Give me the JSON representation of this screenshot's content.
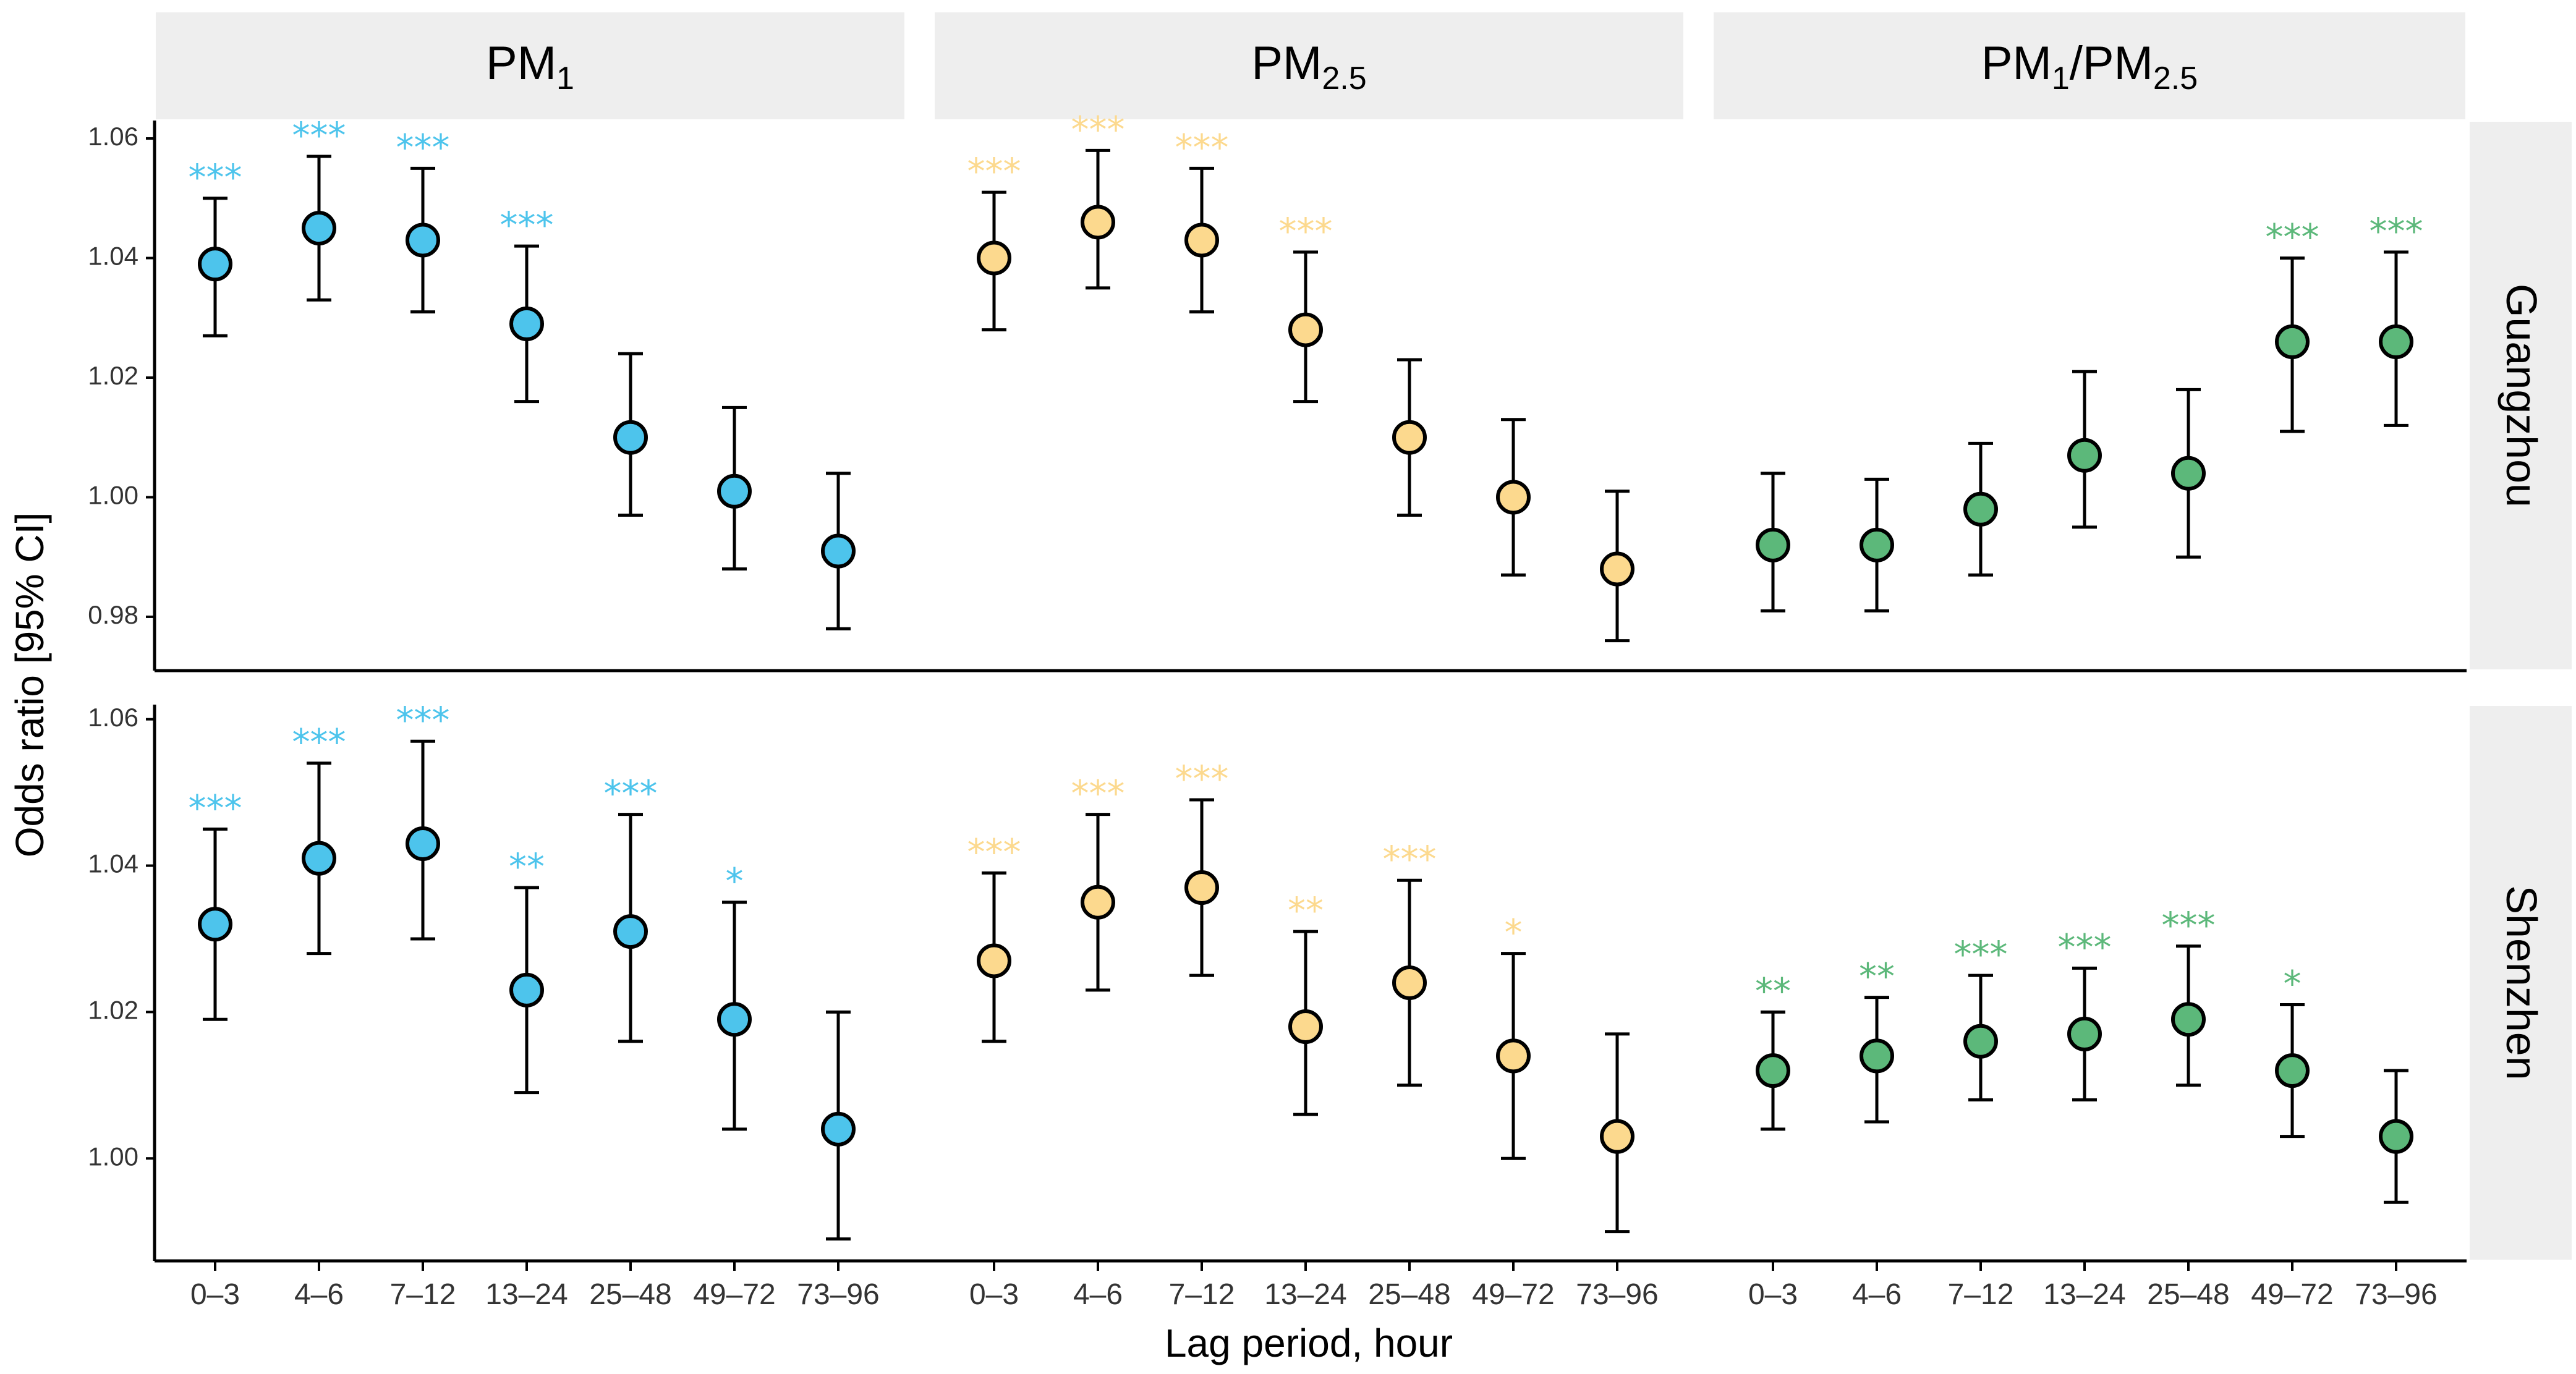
{
  "chart_data": {
    "type": "scatter",
    "subtype": "point-range (odds ratio with 95% CI), faceted",
    "xlabel": "Lag period, hour",
    "ylabel": "Odds ratio [95% CI]",
    "categories": [
      "0–3",
      "4–6",
      "7–12",
      "13–24",
      "25–48",
      "49–72",
      "73–96"
    ],
    "columns": [
      {
        "id": "pm1",
        "label_main": "PM",
        "label_sub": "1",
        "label_tail": "",
        "label_sub2": "",
        "color": "#4DC4EC"
      },
      {
        "id": "pm25",
        "label_main": "PM",
        "label_sub": "2.5",
        "label_tail": "",
        "label_sub2": "",
        "color": "#FCD98E"
      },
      {
        "id": "ratio",
        "label_main": "PM",
        "label_sub": "1",
        "label_tail": "/PM",
        "label_sub2": "2.5",
        "color": "#5CB87A"
      }
    ],
    "rows": [
      {
        "label": "Guangzhou",
        "ylim": [
          0.971,
          1.063
        ],
        "yticks": [
          "0.98",
          "1.00",
          "1.02",
          "1.04",
          "1.06"
        ]
      },
      {
        "label": "Shenzhen",
        "ylim": [
          0.986,
          1.062
        ],
        "yticks": [
          "1.00",
          "1.02",
          "1.04",
          "1.06"
        ]
      }
    ],
    "series": [
      {
        "row": 0,
        "col": 0,
        "points": [
          {
            "lag": "0–3",
            "or": 1.039,
            "lo": 1.027,
            "hi": 1.05,
            "sig": "***"
          },
          {
            "lag": "4–6",
            "or": 1.045,
            "lo": 1.033,
            "hi": 1.057,
            "sig": "***"
          },
          {
            "lag": "7–12",
            "or": 1.043,
            "lo": 1.031,
            "hi": 1.055,
            "sig": "***"
          },
          {
            "lag": "13–24",
            "or": 1.029,
            "lo": 1.016,
            "hi": 1.042,
            "sig": "***"
          },
          {
            "lag": "25–48",
            "or": 1.01,
            "lo": 0.997,
            "hi": 1.024,
            "sig": ""
          },
          {
            "lag": "49–72",
            "or": 1.001,
            "lo": 0.988,
            "hi": 1.015,
            "sig": ""
          },
          {
            "lag": "73–96",
            "or": 0.991,
            "lo": 0.978,
            "hi": 1.004,
            "sig": ""
          }
        ]
      },
      {
        "row": 0,
        "col": 1,
        "points": [
          {
            "lag": "0–3",
            "or": 1.04,
            "lo": 1.028,
            "hi": 1.051,
            "sig": "***"
          },
          {
            "lag": "4–6",
            "or": 1.046,
            "lo": 1.035,
            "hi": 1.058,
            "sig": "***"
          },
          {
            "lag": "7–12",
            "or": 1.043,
            "lo": 1.031,
            "hi": 1.055,
            "sig": "***"
          },
          {
            "lag": "13–24",
            "or": 1.028,
            "lo": 1.016,
            "hi": 1.041,
            "sig": "***"
          },
          {
            "lag": "25–48",
            "or": 1.01,
            "lo": 0.997,
            "hi": 1.023,
            "sig": ""
          },
          {
            "lag": "49–72",
            "or": 1.0,
            "lo": 0.987,
            "hi": 1.013,
            "sig": ""
          },
          {
            "lag": "73–96",
            "or": 0.988,
            "lo": 0.976,
            "hi": 1.001,
            "sig": ""
          }
        ]
      },
      {
        "row": 0,
        "col": 2,
        "points": [
          {
            "lag": "0–3",
            "or": 0.992,
            "lo": 0.981,
            "hi": 1.004,
            "sig": ""
          },
          {
            "lag": "4–6",
            "or": 0.992,
            "lo": 0.981,
            "hi": 1.003,
            "sig": ""
          },
          {
            "lag": "7–12",
            "or": 0.998,
            "lo": 0.987,
            "hi": 1.009,
            "sig": ""
          },
          {
            "lag": "13–24",
            "or": 1.007,
            "lo": 0.995,
            "hi": 1.021,
            "sig": ""
          },
          {
            "lag": "25–48",
            "or": 1.004,
            "lo": 0.99,
            "hi": 1.018,
            "sig": ""
          },
          {
            "lag": "49–72",
            "or": 1.026,
            "lo": 1.011,
            "hi": 1.04,
            "sig": "***"
          },
          {
            "lag": "73–96",
            "or": 1.026,
            "lo": 1.012,
            "hi": 1.041,
            "sig": "***"
          }
        ]
      },
      {
        "row": 1,
        "col": 0,
        "points": [
          {
            "lag": "0–3",
            "or": 1.032,
            "lo": 1.019,
            "hi": 1.045,
            "sig": "***"
          },
          {
            "lag": "4–6",
            "or": 1.041,
            "lo": 1.028,
            "hi": 1.054,
            "sig": "***"
          },
          {
            "lag": "7–12",
            "or": 1.043,
            "lo": 1.03,
            "hi": 1.057,
            "sig": "***"
          },
          {
            "lag": "13–24",
            "or": 1.023,
            "lo": 1.009,
            "hi": 1.037,
            "sig": "**"
          },
          {
            "lag": "25–48",
            "or": 1.031,
            "lo": 1.016,
            "hi": 1.047,
            "sig": "***"
          },
          {
            "lag": "49–72",
            "or": 1.019,
            "lo": 1.004,
            "hi": 1.035,
            "sig": "*"
          },
          {
            "lag": "73–96",
            "or": 1.004,
            "lo": 0.989,
            "hi": 1.02,
            "sig": ""
          }
        ]
      },
      {
        "row": 1,
        "col": 1,
        "points": [
          {
            "lag": "0–3",
            "or": 1.027,
            "lo": 1.016,
            "hi": 1.039,
            "sig": "***"
          },
          {
            "lag": "4–6",
            "or": 1.035,
            "lo": 1.023,
            "hi": 1.047,
            "sig": "***"
          },
          {
            "lag": "7–12",
            "or": 1.037,
            "lo": 1.025,
            "hi": 1.049,
            "sig": "***"
          },
          {
            "lag": "13–24",
            "or": 1.018,
            "lo": 1.006,
            "hi": 1.031,
            "sig": "**"
          },
          {
            "lag": "25–48",
            "or": 1.024,
            "lo": 1.01,
            "hi": 1.038,
            "sig": "***"
          },
          {
            "lag": "49–72",
            "or": 1.014,
            "lo": 1.0,
            "hi": 1.028,
            "sig": "*"
          },
          {
            "lag": "73–96",
            "or": 1.003,
            "lo": 0.99,
            "hi": 1.017,
            "sig": ""
          }
        ]
      },
      {
        "row": 1,
        "col": 2,
        "points": [
          {
            "lag": "0–3",
            "or": 1.012,
            "lo": 1.004,
            "hi": 1.02,
            "sig": "**"
          },
          {
            "lag": "4–6",
            "or": 1.014,
            "lo": 1.005,
            "hi": 1.022,
            "sig": "**"
          },
          {
            "lag": "7–12",
            "or": 1.016,
            "lo": 1.008,
            "hi": 1.025,
            "sig": "***"
          },
          {
            "lag": "13–24",
            "or": 1.017,
            "lo": 1.008,
            "hi": 1.026,
            "sig": "***"
          },
          {
            "lag": "25–48",
            "or": 1.019,
            "lo": 1.01,
            "hi": 1.029,
            "sig": "***"
          },
          {
            "lag": "49–72",
            "or": 1.012,
            "lo": 1.003,
            "hi": 1.021,
            "sig": "*"
          },
          {
            "lag": "73–96",
            "or": 1.003,
            "lo": 0.994,
            "hi": 1.012,
            "sig": ""
          }
        ]
      }
    ]
  }
}
